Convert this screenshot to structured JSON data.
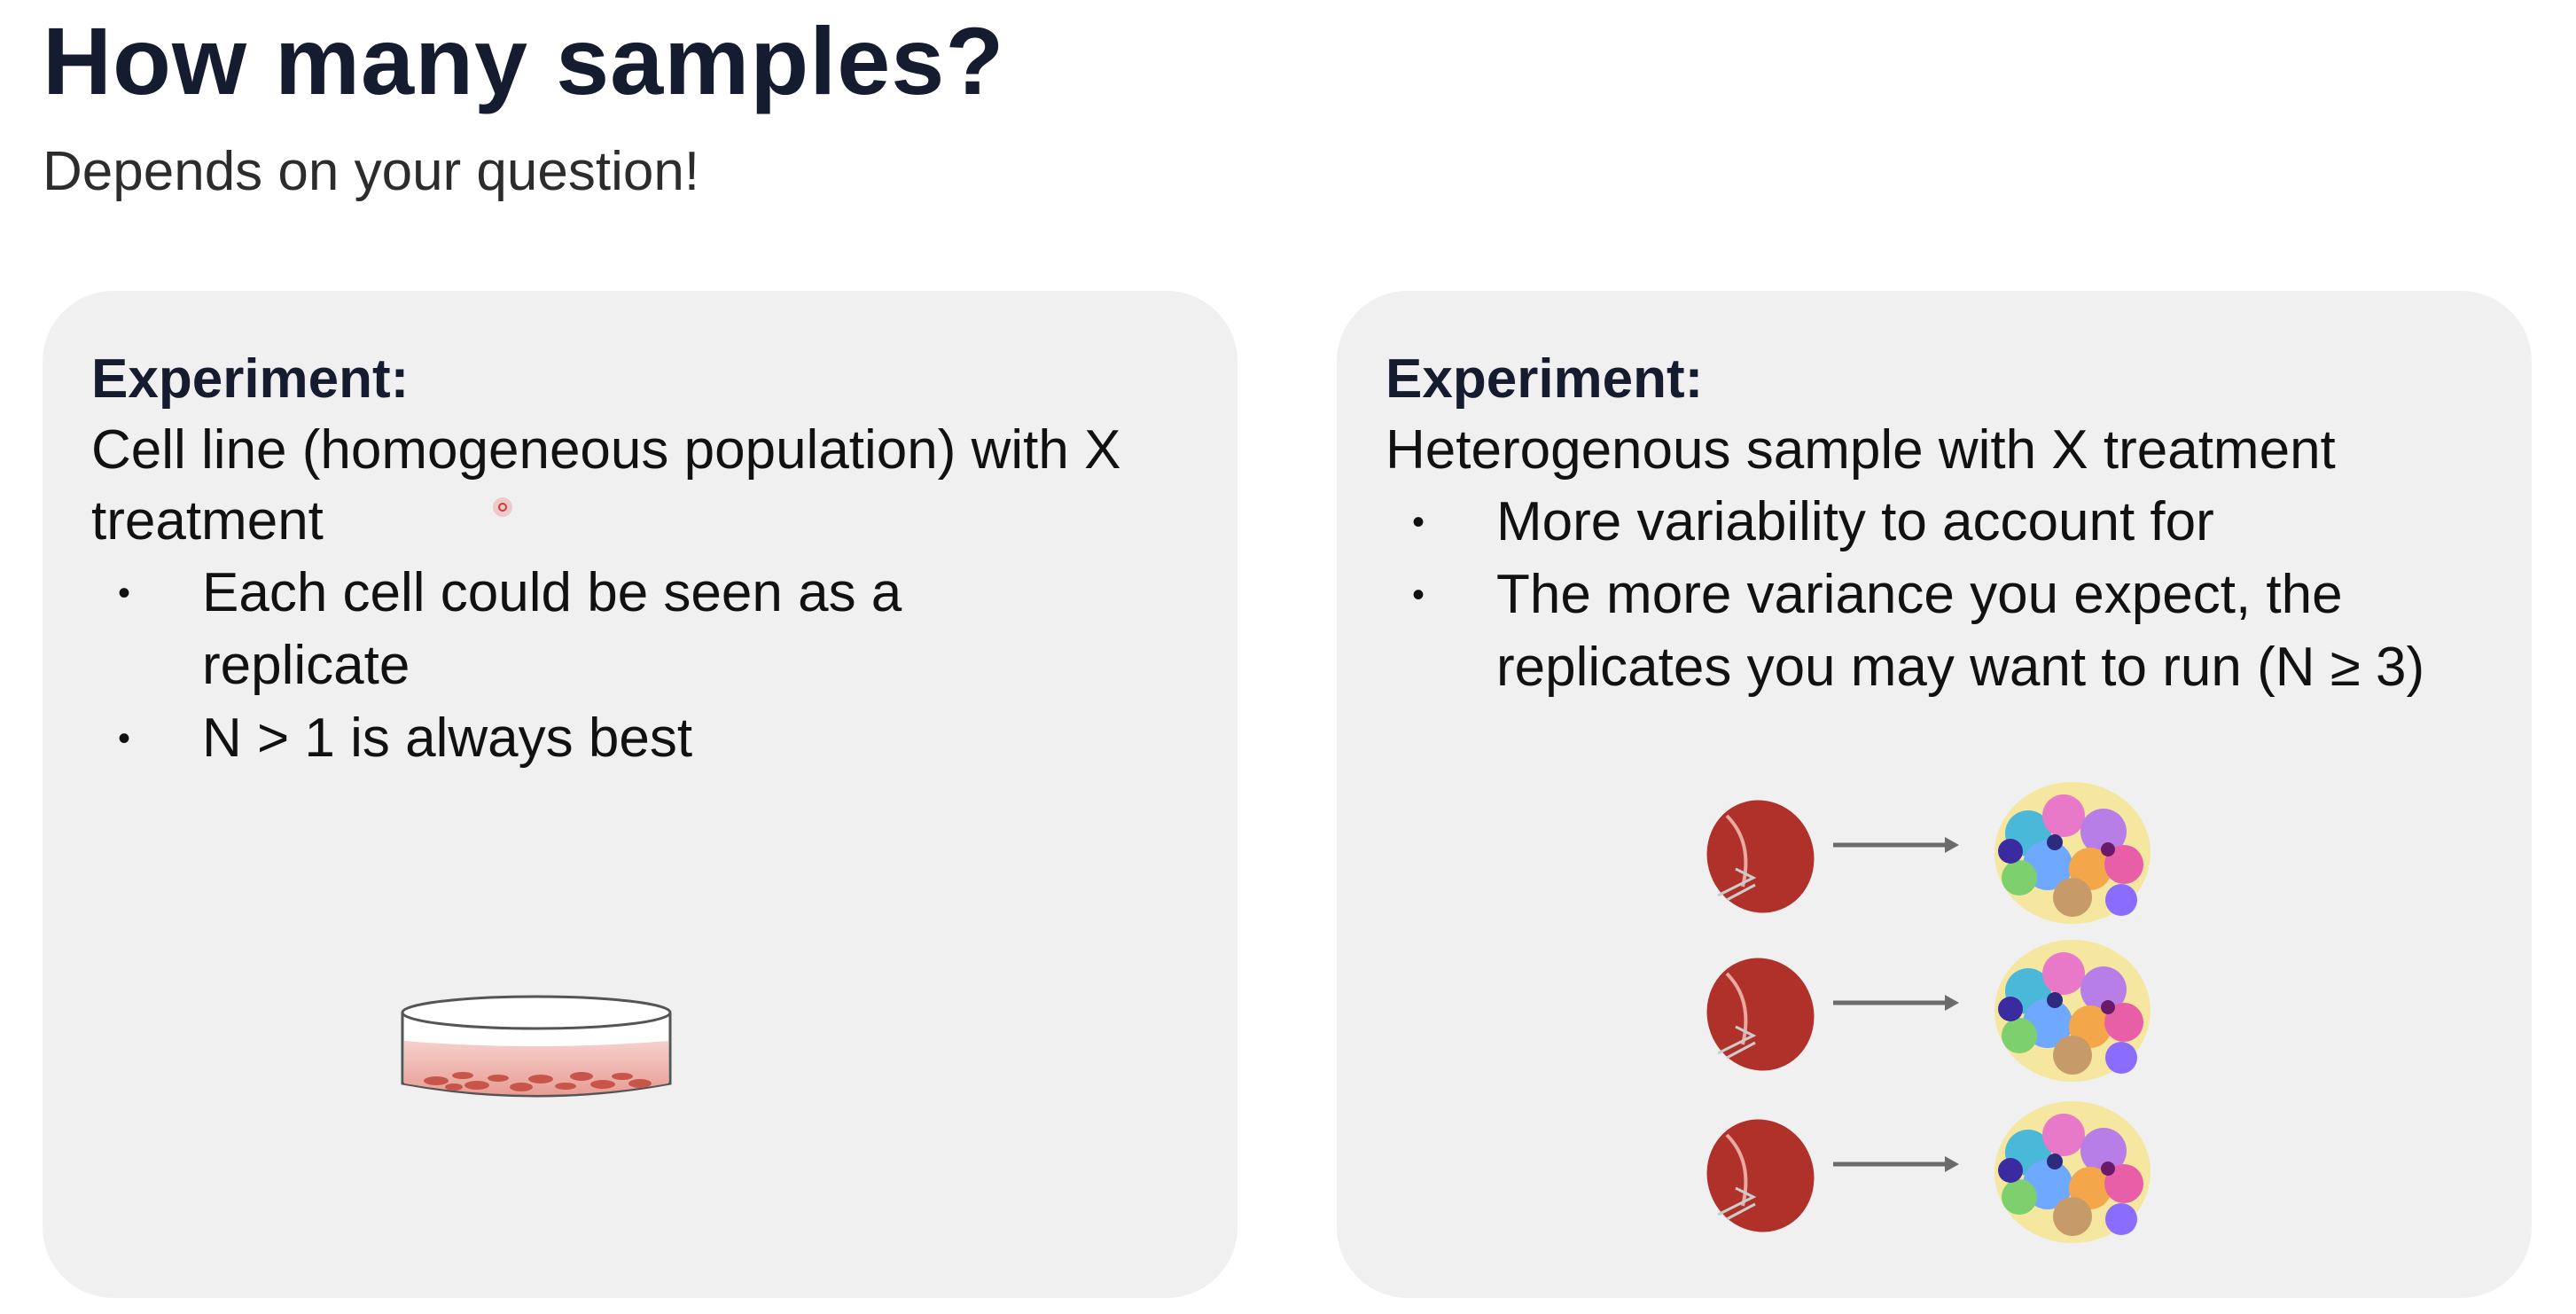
{
  "slide": {
    "title": "How many samples?",
    "subtitle": "Depends on your question!"
  },
  "left_panel": {
    "heading": "Experiment:",
    "description": "Cell line (homogeneous population) with X treatment",
    "bullets": [
      "Each cell could be seen as a replicate",
      "N > 1 is always best"
    ],
    "illustration": "petri-dish-icon"
  },
  "right_panel": {
    "heading": "Experiment:",
    "description": "Heterogenous sample with X treatment",
    "bullets": [
      "More variability to account for",
      "The more variance you expect, the replicates you may want to run (N ≥ 3)"
    ],
    "illustration_rows": 3,
    "illustration_icons": [
      "spleen-icon",
      "arrow-right-icon",
      "cell-cluster-icon"
    ]
  },
  "colors": {
    "title": "#151c30",
    "panel_bg": "#f0f0f1",
    "organ": "#b0302a",
    "arrow": "#6b6b6b"
  }
}
